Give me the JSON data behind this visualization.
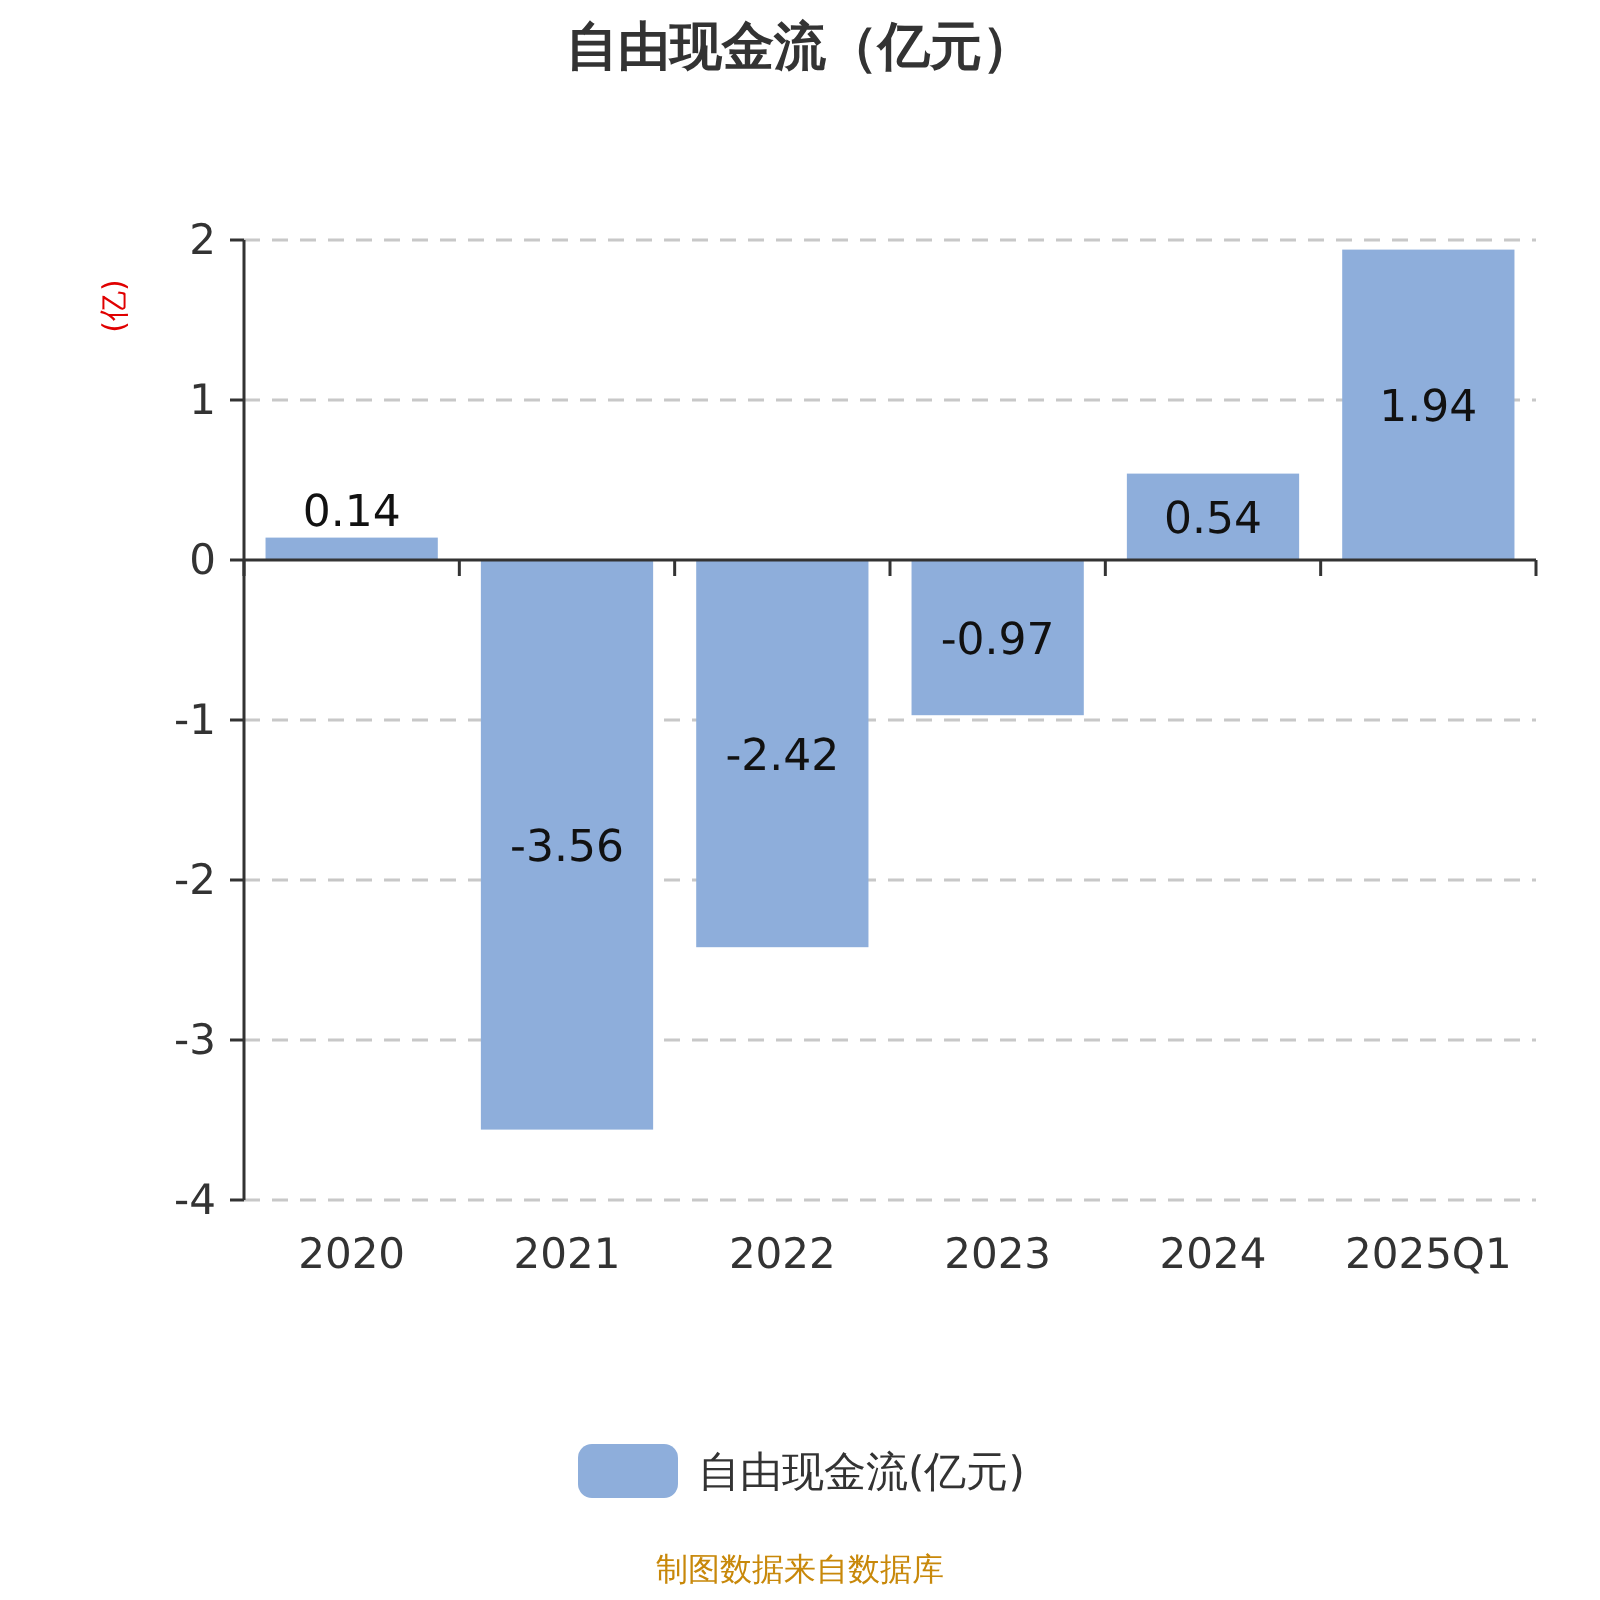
{
  "chart_data": {
    "type": "bar",
    "title": "自由现金流（亿元）",
    "ylabel": "(亿)",
    "categories": [
      "2020",
      "2021",
      "2022",
      "2023",
      "2024",
      "2025Q1"
    ],
    "series": [
      {
        "name": "自由现金流(亿元)",
        "color": "#8eaedb",
        "values": [
          0.14,
          -3.56,
          -2.42,
          -0.97,
          0.54,
          1.94
        ]
      }
    ],
    "ylim": [
      -4,
      2
    ],
    "yticks": [
      -4,
      -3,
      -2,
      -1,
      0,
      1,
      2
    ],
    "grid": "y",
    "legend": "bottom",
    "data_labels": true,
    "annotations": [
      "制图数据来自数据库"
    ]
  }
}
